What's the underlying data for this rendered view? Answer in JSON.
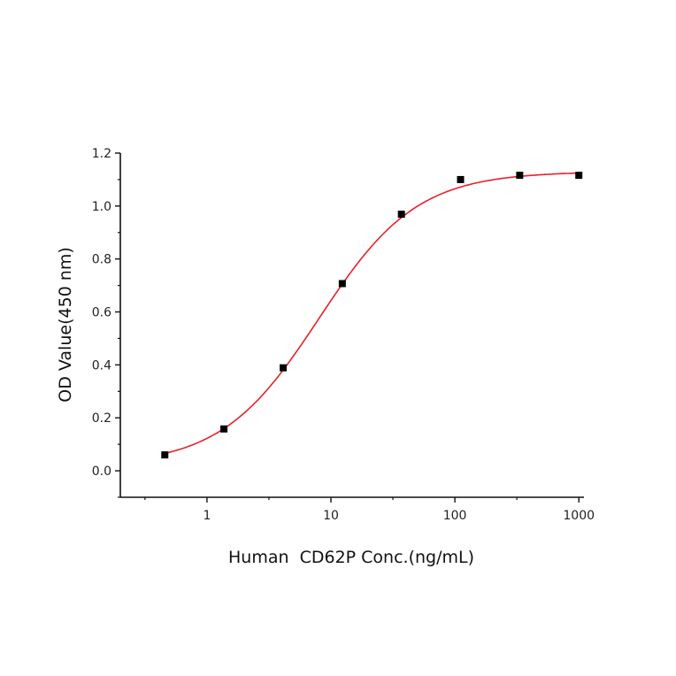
{
  "chart_data": {
    "type": "scatter",
    "title": "",
    "xlabel": "Human  CD62P Conc.(ng/mL)",
    "ylabel": "OD Value(450 nm)",
    "x_scale": "log",
    "xlim": [
      0.2,
      1100
    ],
    "ylim": [
      -0.1,
      1.2
    ],
    "x_ticks": [
      1,
      10,
      100,
      1000
    ],
    "x_tick_labels": [
      "1",
      "10",
      "100",
      "1000"
    ],
    "y_ticks": [
      0.0,
      0.2,
      0.4,
      0.6,
      0.8,
      1.0,
      1.2
    ],
    "y_tick_labels": [
      "0.0",
      "0.2",
      "0.4",
      "0.6",
      "0.8",
      "1.0",
      "1.2"
    ],
    "grid": false,
    "series": [
      {
        "marker": "square",
        "marker_color": "#000000",
        "x": [
          0.457,
          1.37,
          4.12,
          12.35,
          37.04,
          111.1,
          333.3,
          1000
        ],
        "y": [
          0.06,
          0.158,
          0.389,
          0.707,
          0.969,
          1.1,
          1.116,
          1.116
        ]
      }
    ],
    "fit_curve": {
      "type": "sigmoidal fit",
      "color": "#e8202a"
    }
  }
}
